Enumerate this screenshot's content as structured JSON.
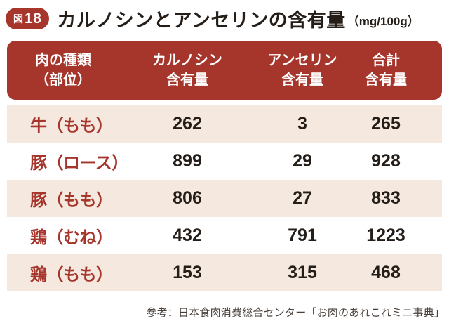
{
  "figure": {
    "badge": {
      "prefix": "図",
      "number": "18"
    },
    "title": "カルノシンとアンセリンの含有量",
    "unit": "（mg/100g）"
  },
  "table": {
    "headers": [
      {
        "line1": "肉の種類",
        "line2": "（部位）"
      },
      {
        "line1": "カルノシン",
        "line2": "含有量"
      },
      {
        "line1": "アンセリン",
        "line2": "含有量"
      },
      {
        "line1": "合計",
        "line2": "含有量"
      }
    ],
    "rows": [
      {
        "label": "牛（もも）",
        "carnosine": "262",
        "anserine": "3",
        "total": "265"
      },
      {
        "label": "豚（ロース）",
        "carnosine": "899",
        "anserine": "29",
        "total": "928"
      },
      {
        "label": "豚（もも）",
        "carnosine": "806",
        "anserine": "27",
        "total": "833"
      },
      {
        "label": "鶏（むね）",
        "carnosine": "432",
        "anserine": "791",
        "total": "1223"
      },
      {
        "label": "鶏（もも）",
        "carnosine": "153",
        "anserine": "315",
        "total": "468"
      }
    ]
  },
  "footer": {
    "source": "参考：日本食肉消費総合センター「お肉のあれこれミニ事典」"
  },
  "colors": {
    "accent_red": "#a6352c",
    "row_beige": "#f5e9df",
    "text_dark": "#241d18",
    "header_text": "#ffffff"
  },
  "chart_data": {
    "type": "table",
    "title": "カルノシンとアンセリンの含有量",
    "unit": "mg/100g",
    "figure_label": "図18",
    "columns": [
      "肉の種類（部位）",
      "カルノシン含有量",
      "アンセリン含有量",
      "合計含有量"
    ],
    "rows": [
      [
        "牛（もも）",
        262,
        3,
        265
      ],
      [
        "豚（ロース）",
        899,
        29,
        928
      ],
      [
        "豚（もも）",
        806,
        27,
        833
      ],
      [
        "鶏（むね）",
        432,
        791,
        1223
      ],
      [
        "鶏（もも）",
        153,
        315,
        468
      ]
    ],
    "source": "参考：日本食肉消費総合センター「お肉のあれこれミニ事典」"
  }
}
